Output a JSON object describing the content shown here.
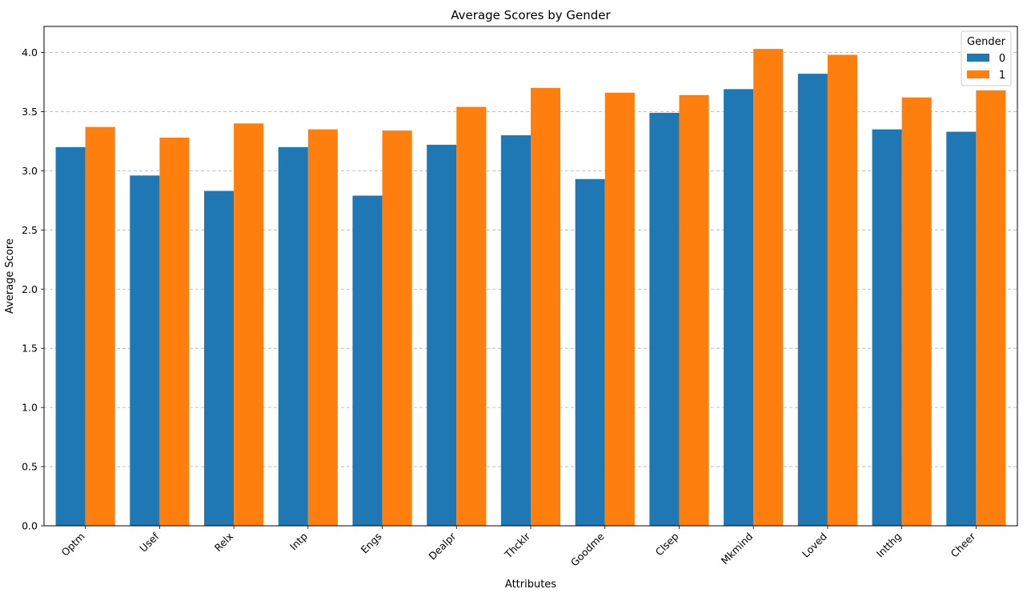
{
  "chart_data": {
    "type": "bar",
    "title": "Average Scores by Gender",
    "xlabel": "Attributes",
    "ylabel": "Average Score",
    "ylim": [
      0,
      4.22
    ],
    "yticks": [
      0.0,
      0.5,
      1.0,
      1.5,
      2.0,
      2.5,
      3.0,
      3.5,
      4.0
    ],
    "ytick_labels": [
      "0.0",
      "0.5",
      "1.0",
      "1.5",
      "2.0",
      "2.5",
      "3.0",
      "3.5",
      "4.0"
    ],
    "grid": "y-dashed",
    "legend": {
      "title": "Gender",
      "placement": "top-right"
    },
    "categories": [
      "Optm",
      "Usef",
      "Relx",
      "Intp",
      "Engs",
      "Dealpr",
      "Thcklr",
      "Goodme",
      "Clsep",
      "Mkmind",
      "Loved",
      "Intthg",
      "Cheer"
    ],
    "series": [
      {
        "name": "0",
        "color": "#1f77b4",
        "values": [
          3.2,
          2.96,
          2.83,
          3.2,
          2.79,
          3.22,
          3.3,
          2.93,
          3.49,
          3.69,
          3.82,
          3.35,
          3.33
        ]
      },
      {
        "name": "1",
        "color": "#ff7f0e",
        "values": [
          3.37,
          3.28,
          3.4,
          3.35,
          3.34,
          3.54,
          3.7,
          3.66,
          3.64,
          4.03,
          3.98,
          3.62,
          3.68
        ]
      }
    ]
  }
}
